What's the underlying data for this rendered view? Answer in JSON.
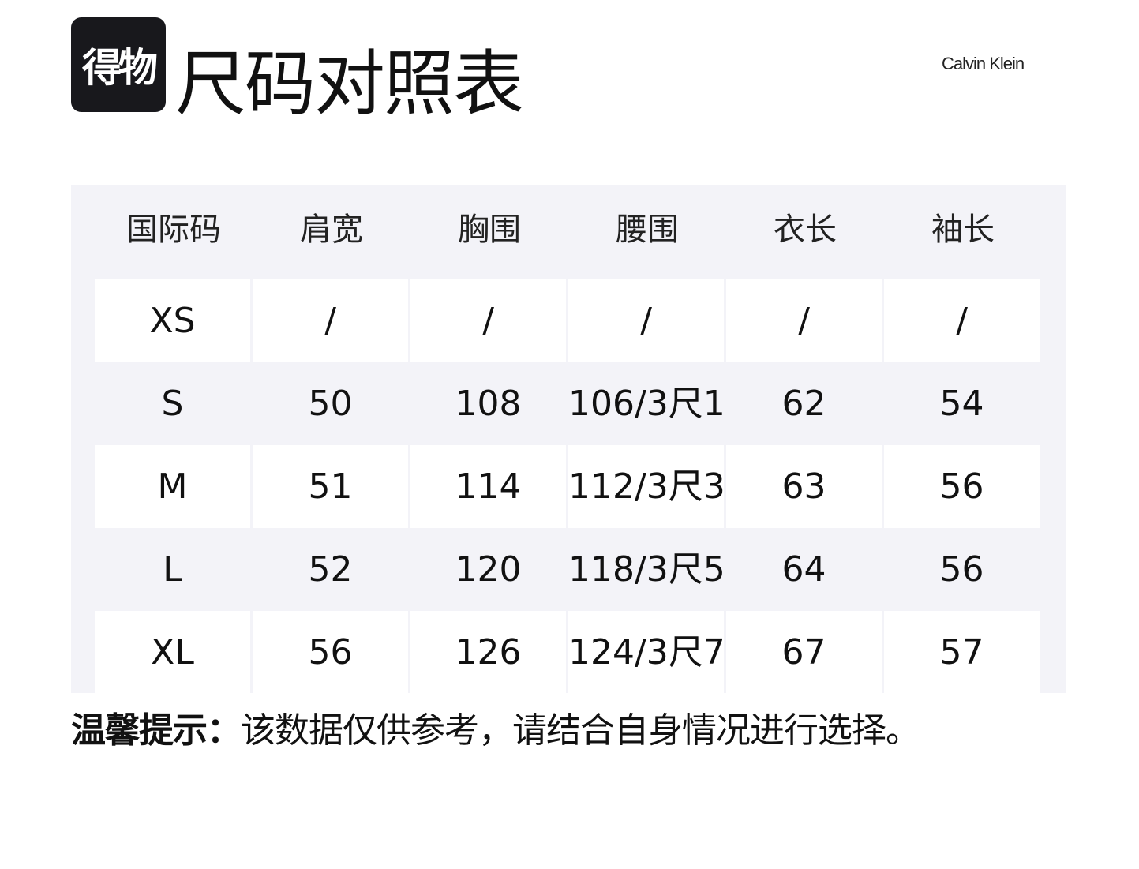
{
  "logo_text": "得物",
  "title": "尺码对照表",
  "brand": "Calvin Klein",
  "table": {
    "headers": [
      "国际码",
      "肩宽",
      "胸围",
      "腰围",
      "衣长",
      "袖长"
    ],
    "rows": [
      [
        "XS",
        "/",
        "/",
        "/",
        "/",
        "/"
      ],
      [
        "S",
        "50",
        "108",
        "106/3尺1",
        "62",
        "54"
      ],
      [
        "M",
        "51",
        "114",
        "112/3尺3",
        "63",
        "56"
      ],
      [
        "L",
        "52",
        "120",
        "118/3尺5",
        "64",
        "56"
      ],
      [
        "XL",
        "56",
        "126",
        "124/3尺7",
        "67",
        "57"
      ]
    ]
  },
  "note": {
    "label": "温馨提示：",
    "text": "该数据仅供参考，请结合自身情况进行选择。"
  },
  "colors": {
    "panel": "#f3f3f8",
    "logo_bg": "#18181c"
  }
}
